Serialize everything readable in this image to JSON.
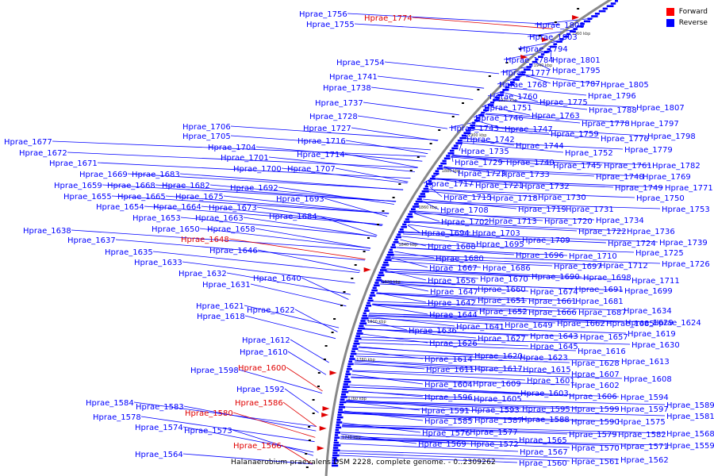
{
  "caption": "Halanaerobium praevalens DSM 2228, complete genome. - 0..2309262",
  "legend": [
    {
      "label": "Forward",
      "color": "#ff0000"
    },
    {
      "label": "Reverse",
      "color": "#0000ff"
    }
  ],
  "colors": {
    "forward": "#e00000",
    "reverse": "#0000ff",
    "backbone": "#888888"
  },
  "kbp_ticks": [
    "1960 kbp",
    "1940 kbp",
    "1920 kbp",
    "1900 kbp",
    "1880 kbp",
    "1860 kbp",
    "1840 kbp",
    "1820 kbp",
    "1800 kbp",
    "1780 kbp",
    "1760 kbp",
    "1740 kbp"
  ],
  "left_labels": [
    {
      "text": "Hprae_1756"
    },
    {
      "text": "Hprae_1774",
      "strand": "forward"
    },
    {
      "text": "Hprae_1755"
    },
    {
      "text": "Hprae_1754"
    },
    {
      "text": "Hprae_1741"
    },
    {
      "text": "Hprae_1738"
    },
    {
      "text": "Hprae_1737"
    },
    {
      "text": "Hprae_1728"
    },
    {
      "text": "Hprae_1727"
    },
    {
      "text": "Hprae_1716"
    },
    {
      "text": "Hprae_1714"
    },
    {
      "text": "Hprae_1707"
    },
    {
      "text": "Hprae_1706"
    },
    {
      "text": "Hprae_1705"
    },
    {
      "text": "Hprae_1704"
    },
    {
      "text": "Hprae_1701"
    },
    {
      "text": "Hprae_1700"
    },
    {
      "text": "Hprae_1677"
    },
    {
      "text": "Hprae_1672"
    },
    {
      "text": "Hprae_1671"
    },
    {
      "text": "Hprae_1669"
    },
    {
      "text": "Hprae_1683"
    },
    {
      "text": "Hprae_1659"
    },
    {
      "text": "Hprae_1668"
    },
    {
      "text": "Hprae_1682"
    },
    {
      "text": "Hprae_1692"
    },
    {
      "text": "Hprae_1655"
    },
    {
      "text": "Hprae_1665"
    },
    {
      "text": "Hprae_1675"
    },
    {
      "text": "Hprae_1693"
    },
    {
      "text": "Hprae_1654"
    },
    {
      "text": "Hprae_1664"
    },
    {
      "text": "Hprae_1673"
    },
    {
      "text": "Hprae_1653"
    },
    {
      "text": "Hprae_1663"
    },
    {
      "text": "Hprae_1684"
    },
    {
      "text": "Hprae_1650"
    },
    {
      "text": "Hprae_1658"
    },
    {
      "text": "Hprae_1638"
    },
    {
      "text": "Hprae_1648",
      "strand": "forward"
    },
    {
      "text": "Hprae_1637"
    },
    {
      "text": "Hprae_1646"
    },
    {
      "text": "Hprae_1635"
    },
    {
      "text": "Hprae_1633"
    },
    {
      "text": "Hprae_1632"
    },
    {
      "text": "Hprae_1640"
    },
    {
      "text": "Hprae_1631"
    },
    {
      "text": "Hprae_1621"
    },
    {
      "text": "Hprae_1622"
    },
    {
      "text": "Hprae_1618"
    },
    {
      "text": "Hprae_1612"
    },
    {
      "text": "Hprae_1610"
    },
    {
      "text": "Hprae_1598"
    },
    {
      "text": "Hprae_1600",
      "strand": "forward"
    },
    {
      "text": "Hprae_1592"
    },
    {
      "text": "Hprae_1584"
    },
    {
      "text": "Hprae_1586",
      "strand": "forward"
    },
    {
      "text": "Hprae_1583"
    },
    {
      "text": "Hprae_1580",
      "strand": "forward"
    },
    {
      "text": "Hprae_1578"
    },
    {
      "text": "Hprae_1574"
    },
    {
      "text": "Hprae_1573"
    },
    {
      "text": "Hprae_1566",
      "strand": "forward"
    },
    {
      "text": "Hprae_1564"
    }
  ],
  "right_labels": [
    {
      "text": "Hprae_1808"
    },
    {
      "text": "Hprae_1803"
    },
    {
      "text": "Hprae_1794"
    },
    {
      "text": "Hprae_1784"
    },
    {
      "text": "Hprae_1801"
    },
    {
      "text": "Hprae_1777"
    },
    {
      "text": "Hprae_1795"
    },
    {
      "text": "Hprae_1768"
    },
    {
      "text": "Hprae_1787"
    },
    {
      "text": "Hprae_1805"
    },
    {
      "text": "Hprae_1760"
    },
    {
      "text": "Hprae_1796"
    },
    {
      "text": "Hprae_1751"
    },
    {
      "text": "Hprae_1775"
    },
    {
      "text": "Hprae_1788"
    },
    {
      "text": "Hprae_1807"
    },
    {
      "text": "Hprae_1746"
    },
    {
      "text": "Hprae_1763"
    },
    {
      "text": "Hprae_1778"
    },
    {
      "text": "Hprae_1797"
    },
    {
      "text": "Hprae_1743"
    },
    {
      "text": "Hprae_1747"
    },
    {
      "text": "Hprae_1759"
    },
    {
      "text": "Hprae_1776"
    },
    {
      "text": "Hprae_1798"
    },
    {
      "text": "Hprae_1742"
    },
    {
      "text": "Hprae_1744"
    },
    {
      "text": "Hprae_1779"
    },
    {
      "text": "Hprae_1735"
    },
    {
      "text": "Hprae_1752"
    },
    {
      "text": "Hprae_1729"
    },
    {
      "text": "Hprae_1740"
    },
    {
      "text": "Hprae_1745"
    },
    {
      "text": "Hprae_1761"
    },
    {
      "text": "Hprae_1782"
    },
    {
      "text": "Hprae_1723"
    },
    {
      "text": "Hprae_1733"
    },
    {
      "text": "Hprae_1748"
    },
    {
      "text": "Hprae_1769"
    },
    {
      "text": "Hprae_1717"
    },
    {
      "text": "Hprae_1721"
    },
    {
      "text": "Hprae_1732"
    },
    {
      "text": "Hprae_1749"
    },
    {
      "text": "Hprae_1771"
    },
    {
      "text": "Hprae_1715"
    },
    {
      "text": "Hprae_1718"
    },
    {
      "text": "Hprae_1730"
    },
    {
      "text": "Hprae_1750"
    },
    {
      "text": "Hprae_1708"
    },
    {
      "text": "Hprae_1719"
    },
    {
      "text": "Hprae_1731"
    },
    {
      "text": "Hprae_1753"
    },
    {
      "text": "Hprae_1702"
    },
    {
      "text": "Hprae_1713"
    },
    {
      "text": "Hprae_1720"
    },
    {
      "text": "Hprae_1734"
    },
    {
      "text": "Hprae_1694"
    },
    {
      "text": "Hprae_1703"
    },
    {
      "text": "Hprae_1722"
    },
    {
      "text": "Hprae_1736"
    },
    {
      "text": "Hprae_1688"
    },
    {
      "text": "Hprae_1695"
    },
    {
      "text": "Hprae_1709"
    },
    {
      "text": "Hprae_1724"
    },
    {
      "text": "Hprae_1739"
    },
    {
      "text": "Hprae_1680"
    },
    {
      "text": "Hprae_1696"
    },
    {
      "text": "Hprae_1710"
    },
    {
      "text": "Hprae_1725"
    },
    {
      "text": "Hprae_1667"
    },
    {
      "text": "Hprae_1686"
    },
    {
      "text": "Hprae_1697"
    },
    {
      "text": "Hprae_1712"
    },
    {
      "text": "Hprae_1726"
    },
    {
      "text": "Hprae_1656"
    },
    {
      "text": "Hprae_1670"
    },
    {
      "text": "Hprae_1690"
    },
    {
      "text": "Hprae_1698"
    },
    {
      "text": "Hprae_1711"
    },
    {
      "text": "Hprae_1647"
    },
    {
      "text": "Hprae_1660"
    },
    {
      "text": "Hprae_1674"
    },
    {
      "text": "Hprae_1691"
    },
    {
      "text": "Hprae_1699"
    },
    {
      "text": "Hprae_1642"
    },
    {
      "text": "Hprae_1651"
    },
    {
      "text": "Hprae_1661"
    },
    {
      "text": "Hprae_1681"
    },
    {
      "text": "Hprae_1634"
    },
    {
      "text": "Hprae_1644"
    },
    {
      "text": "Hprae_1652"
    },
    {
      "text": "Hprae_1666"
    },
    {
      "text": "Hprae_1687"
    },
    {
      "text": "Hprae_1629"
    },
    {
      "text": "Hprae_1641"
    },
    {
      "text": "Hprae_1649"
    },
    {
      "text": "Hprae_1662"
    },
    {
      "text": "Hprae_1685"
    },
    {
      "text": "Hprae_1624"
    },
    {
      "text": "Hprae_1636"
    },
    {
      "text": "Hprae_1643"
    },
    {
      "text": "Hprae_1657"
    },
    {
      "text": "Hprae_1619"
    },
    {
      "text": "Hprae_1626"
    },
    {
      "text": "Hprae_1627"
    },
    {
      "text": "Hprae_1645"
    },
    {
      "text": "Hprae_1630"
    },
    {
      "text": "Hprae_1616"
    },
    {
      "text": "Hprae_1620"
    },
    {
      "text": "Hprae_1623"
    },
    {
      "text": "Hprae_1628"
    },
    {
      "text": "Hprae_1613"
    },
    {
      "text": "Hprae_1614"
    },
    {
      "text": "Hprae_1615"
    },
    {
      "text": "Hprae_1607"
    },
    {
      "text": "Hprae_1611"
    },
    {
      "text": "Hprae_1617"
    },
    {
      "text": "Hprae_1608"
    },
    {
      "text": "Hprae_1601"
    },
    {
      "text": "Hprae_1604"
    },
    {
      "text": "Hprae_1609"
    },
    {
      "text": "Hprae_1602"
    },
    {
      "text": "Hprae_1603"
    },
    {
      "text": "Hprae_1606"
    },
    {
      "text": "Hprae_1594"
    },
    {
      "text": "Hprae_1596"
    },
    {
      "text": "Hprae_1605"
    },
    {
      "text": "Hprae_1589"
    },
    {
      "text": "Hprae_1591"
    },
    {
      "text": "Hprae_1593"
    },
    {
      "text": "Hprae_1595"
    },
    {
      "text": "Hprae_1599"
    },
    {
      "text": "Hprae_1597"
    },
    {
      "text": "Hprae_1581"
    },
    {
      "text": "Hprae_1585"
    },
    {
      "text": "Hprae_1587"
    },
    {
      "text": "Hprae_1588"
    },
    {
      "text": "Hprae_1590"
    },
    {
      "text": "Hprae_1575"
    },
    {
      "text": "Hprae_1576"
    },
    {
      "text": "Hprae_1577"
    },
    {
      "text": "Hprae_1579"
    },
    {
      "text": "Hprae_1582"
    },
    {
      "text": "Hprae_1568"
    },
    {
      "text": "Hprae_1569"
    },
    {
      "text": "Hprae_1572"
    },
    {
      "text": "Hprae_1565"
    },
    {
      "text": "Hprae_1567"
    },
    {
      "text": "Hprae_1570"
    },
    {
      "text": "Hprae_1571"
    },
    {
      "text": "Hprae_1559"
    },
    {
      "text": "Hprae_1560"
    },
    {
      "text": "Hprae_1561"
    },
    {
      "text": "Hprae_1562"
    }
  ]
}
